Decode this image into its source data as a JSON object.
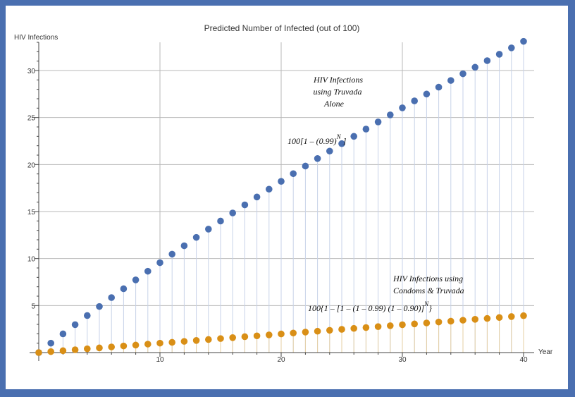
{
  "chart_data": {
    "type": "scatter",
    "title": "Predicted Number of Infected (out of 100)",
    "xlabel": "Year",
    "ylabel": "HIV Infections",
    "xlim": [
      0,
      40
    ],
    "ylim": [
      0,
      33
    ],
    "xticks": [
      10,
      20,
      30,
      40
    ],
    "yticks": [
      5,
      10,
      15,
      20,
      25,
      30
    ],
    "grid": true,
    "series": [
      {
        "color": "#4a6fb0",
        "x": [
          0,
          1,
          2,
          3,
          4,
          5,
          6,
          7,
          8,
          9,
          10,
          11,
          12,
          13,
          14,
          15,
          16,
          17,
          18,
          19,
          20,
          21,
          22,
          23,
          24,
          25,
          26,
          27,
          28,
          29,
          30,
          31,
          32,
          33,
          34,
          35,
          36,
          37,
          38,
          39,
          40
        ],
        "y": [
          0,
          1.0,
          1.99,
          2.97,
          3.94,
          4.9,
          5.85,
          6.79,
          7.73,
          8.65,
          9.56,
          10.47,
          11.36,
          12.25,
          13.13,
          13.99,
          14.85,
          15.71,
          16.55,
          17.38,
          18.21,
          19.03,
          19.84,
          20.64,
          21.43,
          22.22,
          23.0,
          23.77,
          24.53,
          25.28,
          26.03,
          26.77,
          27.5,
          28.23,
          28.94,
          29.65,
          30.35,
          31.05,
          31.73,
          32.41,
          33.1
        ]
      },
      {
        "color": "#d98f16",
        "x": [
          0,
          1,
          2,
          3,
          4,
          5,
          6,
          7,
          8,
          9,
          10,
          11,
          12,
          13,
          14,
          15,
          16,
          17,
          18,
          19,
          20,
          21,
          22,
          23,
          24,
          25,
          26,
          27,
          28,
          29,
          30,
          31,
          32,
          33,
          34,
          35,
          36,
          37,
          38,
          39,
          40
        ],
        "y": [
          0,
          0.1,
          0.2,
          0.3,
          0.4,
          0.5,
          0.6,
          0.7,
          0.8,
          0.9,
          1.0,
          1.09,
          1.19,
          1.29,
          1.39,
          1.49,
          1.59,
          1.69,
          1.78,
          1.88,
          1.98,
          2.08,
          2.18,
          2.27,
          2.37,
          2.47,
          2.57,
          2.66,
          2.76,
          2.86,
          2.96,
          3.05,
          3.15,
          3.25,
          3.34,
          3.44,
          3.54,
          3.63,
          3.73,
          3.83,
          3.92
        ]
      }
    ],
    "annotations": [
      {
        "lines": [
          "HIV Infections",
          "using Truvada",
          "Alone"
        ]
      },
      {
        "lines": [
          "100[1 – (0.99)",
          "N",
          " ]"
        ]
      },
      {
        "lines": [
          "HIV Infections using",
          "Condoms & Truvada"
        ]
      },
      {
        "lines": [
          "100{1 – [1 – (1 – 0.99) (1 – 0.90)]",
          "N",
          "}"
        ]
      }
    ]
  }
}
